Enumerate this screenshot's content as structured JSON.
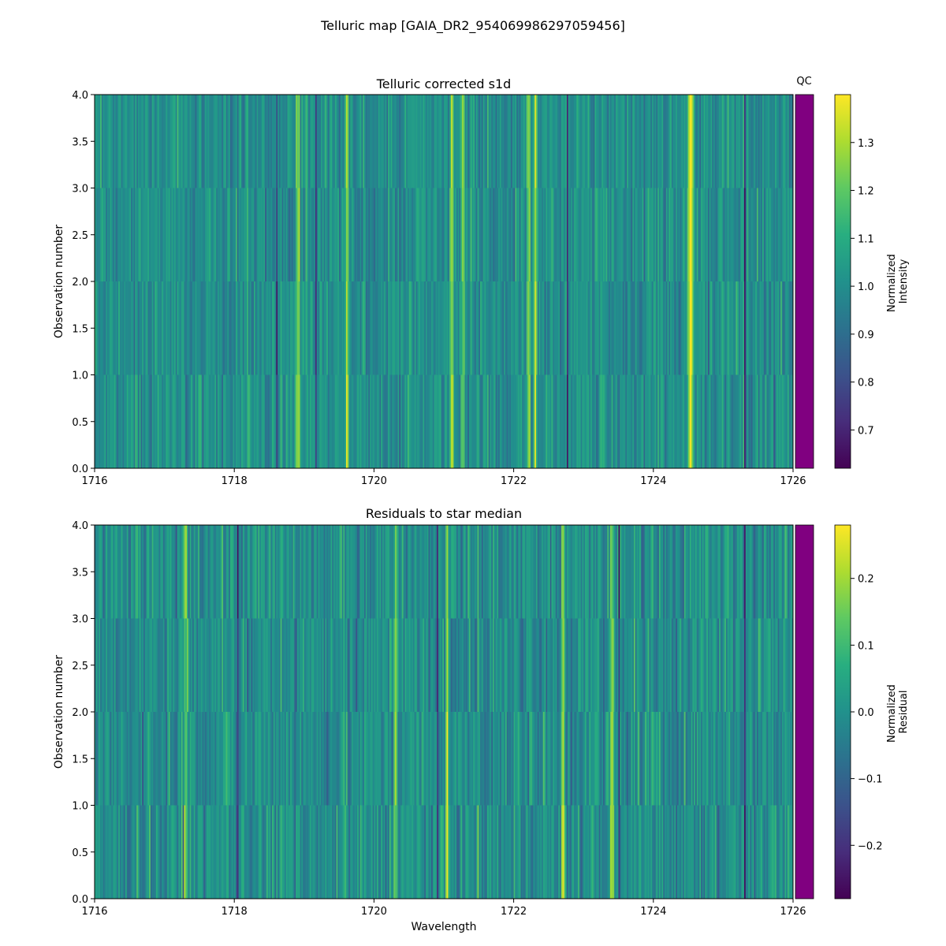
{
  "figure": {
    "suptitle": "Telluric map [GAIA_DR2_954069986297059456]"
  },
  "chart_data": [
    {
      "type": "heatmap",
      "title": "Telluric corrected s1d",
      "xlabel": "",
      "ylabel": "Observation number",
      "xlim": [
        1716,
        1726
      ],
      "ylim": [
        0.0,
        4.0
      ],
      "x_ticks": [
        "1716",
        "1718",
        "1720",
        "1722",
        "1724",
        "1726"
      ],
      "y_ticks": [
        "0.0",
        "0.5",
        "1.0",
        "1.5",
        "2.0",
        "2.5",
        "3.0",
        "3.5",
        "4.0"
      ],
      "rows": 4,
      "wavelength_bins": 500,
      "colormap": "viridis",
      "colorbar": {
        "label": "Normalized\nIntensity",
        "range": [
          0.62,
          1.4
        ],
        "ticks": [
          "0.7",
          "0.8",
          "0.9",
          "1.0",
          "1.1",
          "1.2",
          "1.3"
        ]
      },
      "qc_strip": {
        "label": "QC",
        "color": "#800080",
        "rows": 4
      },
      "bright_features": [
        1718.9,
        1719.6,
        1721.1,
        1721.25,
        1722.2,
        1722.3,
        1724.5,
        1724.55
      ],
      "dark_features": [
        1718.6,
        1719.15,
        1722.75,
        1725.3
      ]
    },
    {
      "type": "heatmap",
      "title": "Residuals to star median",
      "xlabel": "Wavelength",
      "ylabel": "Observation number",
      "xlim": [
        1716,
        1726
      ],
      "ylim": [
        0.0,
        4.0
      ],
      "x_ticks": [
        "1716",
        "1718",
        "1720",
        "1722",
        "1724",
        "1726"
      ],
      "y_ticks": [
        "0.0",
        "0.5",
        "1.0",
        "1.5",
        "2.0",
        "2.5",
        "3.0",
        "3.5",
        "4.0"
      ],
      "rows": 4,
      "wavelength_bins": 500,
      "colormap": "viridis",
      "colorbar": {
        "label": "Normalized\nResidual",
        "range": [
          -0.28,
          0.28
        ],
        "ticks": [
          "−0.2",
          "−0.1",
          "0.0",
          "0.1",
          "0.2"
        ]
      },
      "qc_strip": {
        "label": "",
        "color": "#800080",
        "rows": 4
      },
      "bright_features": [
        1717.3,
        1720.3,
        1721.05,
        1722.7,
        1723.4
      ],
      "dark_features": [
        1718.05,
        1720.9,
        1723.5,
        1725.3
      ]
    }
  ]
}
